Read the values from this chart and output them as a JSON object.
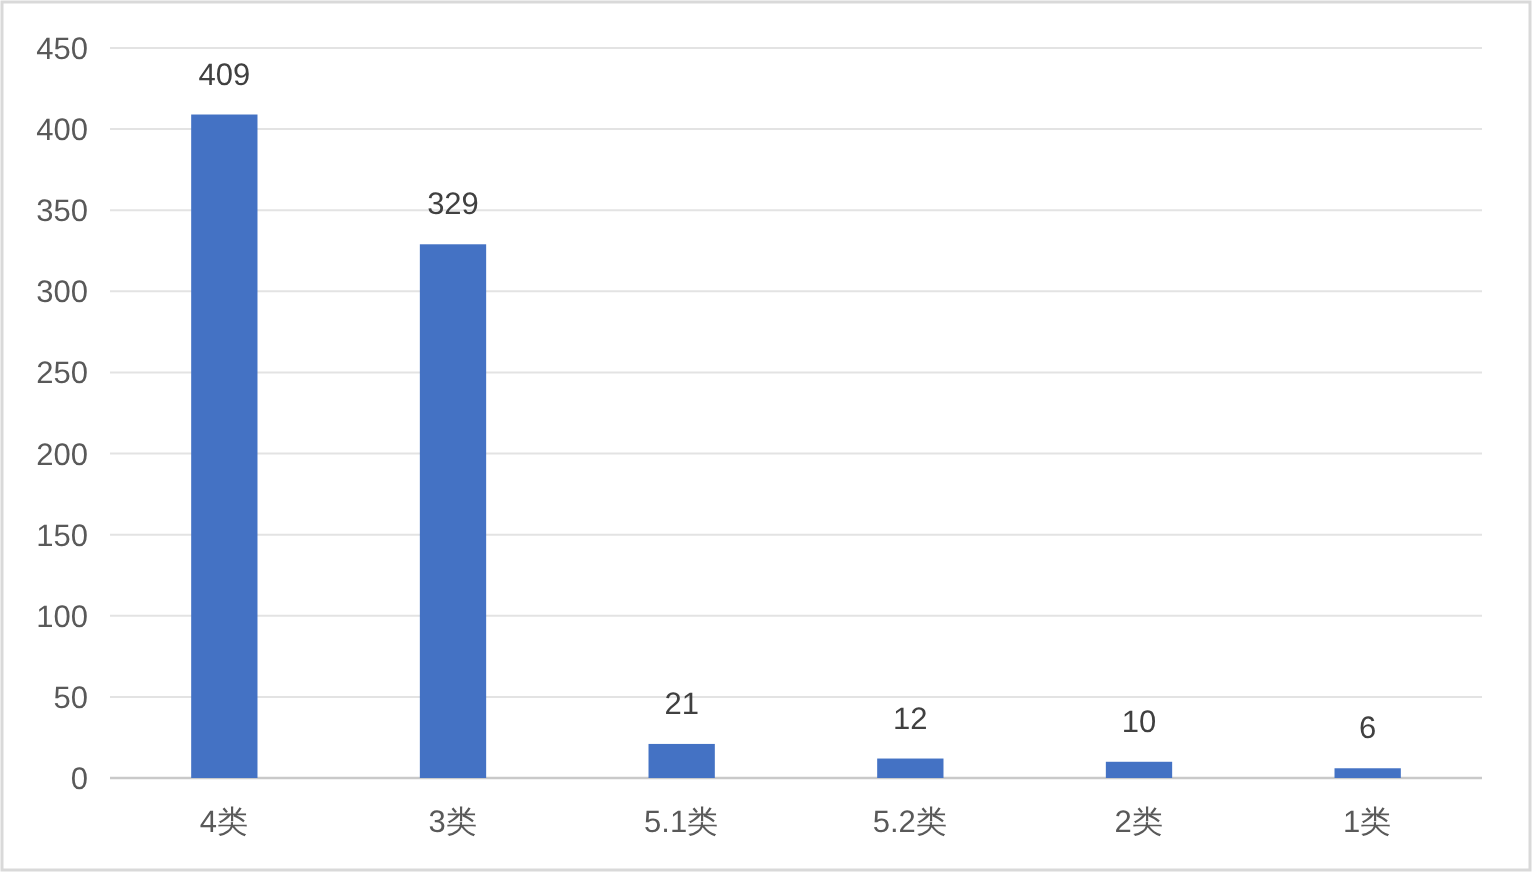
{
  "chart_data": {
    "type": "bar",
    "categories": [
      "4类",
      "3类",
      "5.1类",
      "5.2类",
      "2类",
      "1类"
    ],
    "values": [
      409,
      329,
      21,
      12,
      10,
      6
    ],
    "color": "#4472c4",
    "ylim": [
      0,
      450
    ],
    "yticks": [
      0,
      50,
      100,
      150,
      200,
      250,
      300,
      350,
      400,
      450
    ],
    "grid": "y",
    "data_labels": true
  }
}
